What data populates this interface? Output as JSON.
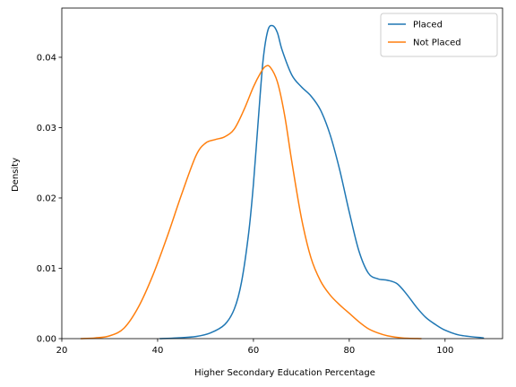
{
  "chart_data": {
    "type": "line",
    "title": "",
    "xlabel": "Higher Secondary Education Percentage",
    "ylabel": "Density",
    "xlim": [
      20,
      112
    ],
    "ylim": [
      0,
      0.047
    ],
    "x_ticks": [
      20,
      40,
      60,
      80,
      100
    ],
    "x_tick_labels": [
      "20",
      "40",
      "60",
      "80",
      "100"
    ],
    "y_ticks": [
      0,
      0.01,
      0.02,
      0.03,
      0.04
    ],
    "y_tick_labels": [
      "0.00",
      "0.01",
      "0.02",
      "0.03",
      "0.04"
    ],
    "grid": false,
    "legend_position": "top-right",
    "series": [
      {
        "name": "Placed",
        "color": "#1f77b4",
        "points": [
          [
            40.5,
            0.0
          ],
          [
            44,
            0.0001
          ],
          [
            48,
            0.0003
          ],
          [
            51,
            0.0008
          ],
          [
            54,
            0.002
          ],
          [
            56,
            0.0042
          ],
          [
            57.5,
            0.008
          ],
          [
            59,
            0.015
          ],
          [
            60,
            0.022
          ],
          [
            61,
            0.031
          ],
          [
            62,
            0.0395
          ],
          [
            63,
            0.0438
          ],
          [
            64,
            0.0445
          ],
          [
            65,
            0.0435
          ],
          [
            66,
            0.041
          ],
          [
            68,
            0.0375
          ],
          [
            70,
            0.0358
          ],
          [
            72,
            0.0345
          ],
          [
            74,
            0.0325
          ],
          [
            76,
            0.029
          ],
          [
            78,
            0.024
          ],
          [
            80,
            0.018
          ],
          [
            82,
            0.0125
          ],
          [
            84,
            0.0093
          ],
          [
            86,
            0.0085
          ],
          [
            88,
            0.0083
          ],
          [
            90,
            0.0078
          ],
          [
            92,
            0.0063
          ],
          [
            94,
            0.0045
          ],
          [
            96,
            0.003
          ],
          [
            98,
            0.002
          ],
          [
            100,
            0.0012
          ],
          [
            103,
            0.0005
          ],
          [
            108,
            0.0001
          ]
        ]
      },
      {
        "name": "Not Placed",
        "color": "#ff7f0e",
        "points": [
          [
            24,
            0.0
          ],
          [
            27,
            0.0001
          ],
          [
            30,
            0.0004
          ],
          [
            33,
            0.0015
          ],
          [
            36,
            0.0045
          ],
          [
            39,
            0.009
          ],
          [
            42,
            0.0145
          ],
          [
            45,
            0.0205
          ],
          [
            48,
            0.026
          ],
          [
            50,
            0.0278
          ],
          [
            52,
            0.0283
          ],
          [
            54,
            0.0287
          ],
          [
            56,
            0.0298
          ],
          [
            58,
            0.0325
          ],
          [
            60,
            0.0358
          ],
          [
            61.5,
            0.0378
          ],
          [
            62.5,
            0.0387
          ],
          [
            63.5,
            0.0386
          ],
          [
            65,
            0.0365
          ],
          [
            66.5,
            0.0318
          ],
          [
            68,
            0.0252
          ],
          [
            70,
            0.0172
          ],
          [
            72,
            0.0115
          ],
          [
            74,
            0.0082
          ],
          [
            76,
            0.0062
          ],
          [
            78,
            0.0048
          ],
          [
            80,
            0.0036
          ],
          [
            82,
            0.0024
          ],
          [
            84,
            0.0014
          ],
          [
            86,
            0.0008
          ],
          [
            88,
            0.0004
          ],
          [
            91,
            0.0001
          ],
          [
            95,
            0.0
          ]
        ]
      }
    ]
  }
}
